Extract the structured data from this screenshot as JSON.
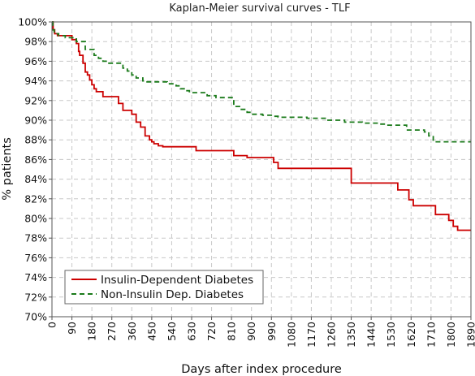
{
  "chart_data": {
    "type": "line",
    "style": "step",
    "title": "Kaplan-Meier survival curves - TLF",
    "xlabel": "Days after index procedure",
    "ylabel": "% patients",
    "xlim": [
      0,
      1890
    ],
    "ylim": [
      70,
      100
    ],
    "grid": true,
    "legend_position": "bottom-left",
    "x_ticks": [
      0,
      90,
      180,
      270,
      360,
      450,
      540,
      630,
      720,
      810,
      900,
      990,
      1080,
      1170,
      1260,
      1350,
      1440,
      1530,
      1620,
      1710,
      1800,
      1890
    ],
    "y_ticks": [
      "70%",
      "72%",
      "74%",
      "76%",
      "78%",
      "80%",
      "82%",
      "84%",
      "86%",
      "88%",
      "90%",
      "92%",
      "94%",
      "96%",
      "98%",
      "100%"
    ],
    "series": [
      {
        "name": "Insulin-Dependent Diabetes",
        "color": "#cc0000",
        "dash": "solid",
        "x": [
          0,
          5,
          12,
          25,
          90,
          110,
          120,
          125,
          140,
          150,
          160,
          170,
          180,
          190,
          200,
          230,
          300,
          320,
          330,
          360,
          380,
          400,
          420,
          440,
          450,
          460,
          480,
          500,
          630,
          650,
          800,
          820,
          880,
          1000,
          1020,
          1340,
          1350,
          1360,
          1540,
          1560,
          1580,
          1610,
          1630,
          1710,
          1730,
          1770,
          1790,
          1810,
          1830,
          1890
        ],
        "y": [
          100,
          99.2,
          98.8,
          98.6,
          98.2,
          97.8,
          97.0,
          96.6,
          95.8,
          94.9,
          94.6,
          94.1,
          93.6,
          93.2,
          92.9,
          92.4,
          91.7,
          91.0,
          91.0,
          90.6,
          89.8,
          89.3,
          88.4,
          88.0,
          87.8,
          87.6,
          87.4,
          87.3,
          87.3,
          86.9,
          86.9,
          86.4,
          86.2,
          85.7,
          85.1,
          85.1,
          83.6,
          83.6,
          83.6,
          82.9,
          82.9,
          81.9,
          81.3,
          81.3,
          80.4,
          80.4,
          79.8,
          79.2,
          78.8,
          78.8
        ]
      },
      {
        "name": "Non-Insulin Dep. Diabetes",
        "color": "#1a7a1a",
        "dash": "dashed",
        "x": [
          0,
          4,
          10,
          30,
          60,
          110,
          150,
          190,
          210,
          230,
          250,
          320,
          340,
          360,
          380,
          410,
          420,
          520,
          560,
          580,
          600,
          620,
          700,
          740,
          820,
          850,
          880,
          900,
          950,
          1000,
          1020,
          1060,
          1150,
          1240,
          1320,
          1400,
          1480,
          1510,
          1600,
          1680,
          1700,
          1720,
          1800,
          1890
        ],
        "y": [
          100,
          99.2,
          98.8,
          98.6,
          98.4,
          98.0,
          97.2,
          96.6,
          96.3,
          96.0,
          95.8,
          95.3,
          95.0,
          94.6,
          94.3,
          94.0,
          93.9,
          93.7,
          93.5,
          93.2,
          93.0,
          92.8,
          92.5,
          92.3,
          91.4,
          91.1,
          90.8,
          90.6,
          90.5,
          90.4,
          90.3,
          90.3,
          90.2,
          90.0,
          89.8,
          89.7,
          89.6,
          89.5,
          89.0,
          88.8,
          88.4,
          87.8,
          87.8,
          87.8
        ]
      }
    ]
  }
}
